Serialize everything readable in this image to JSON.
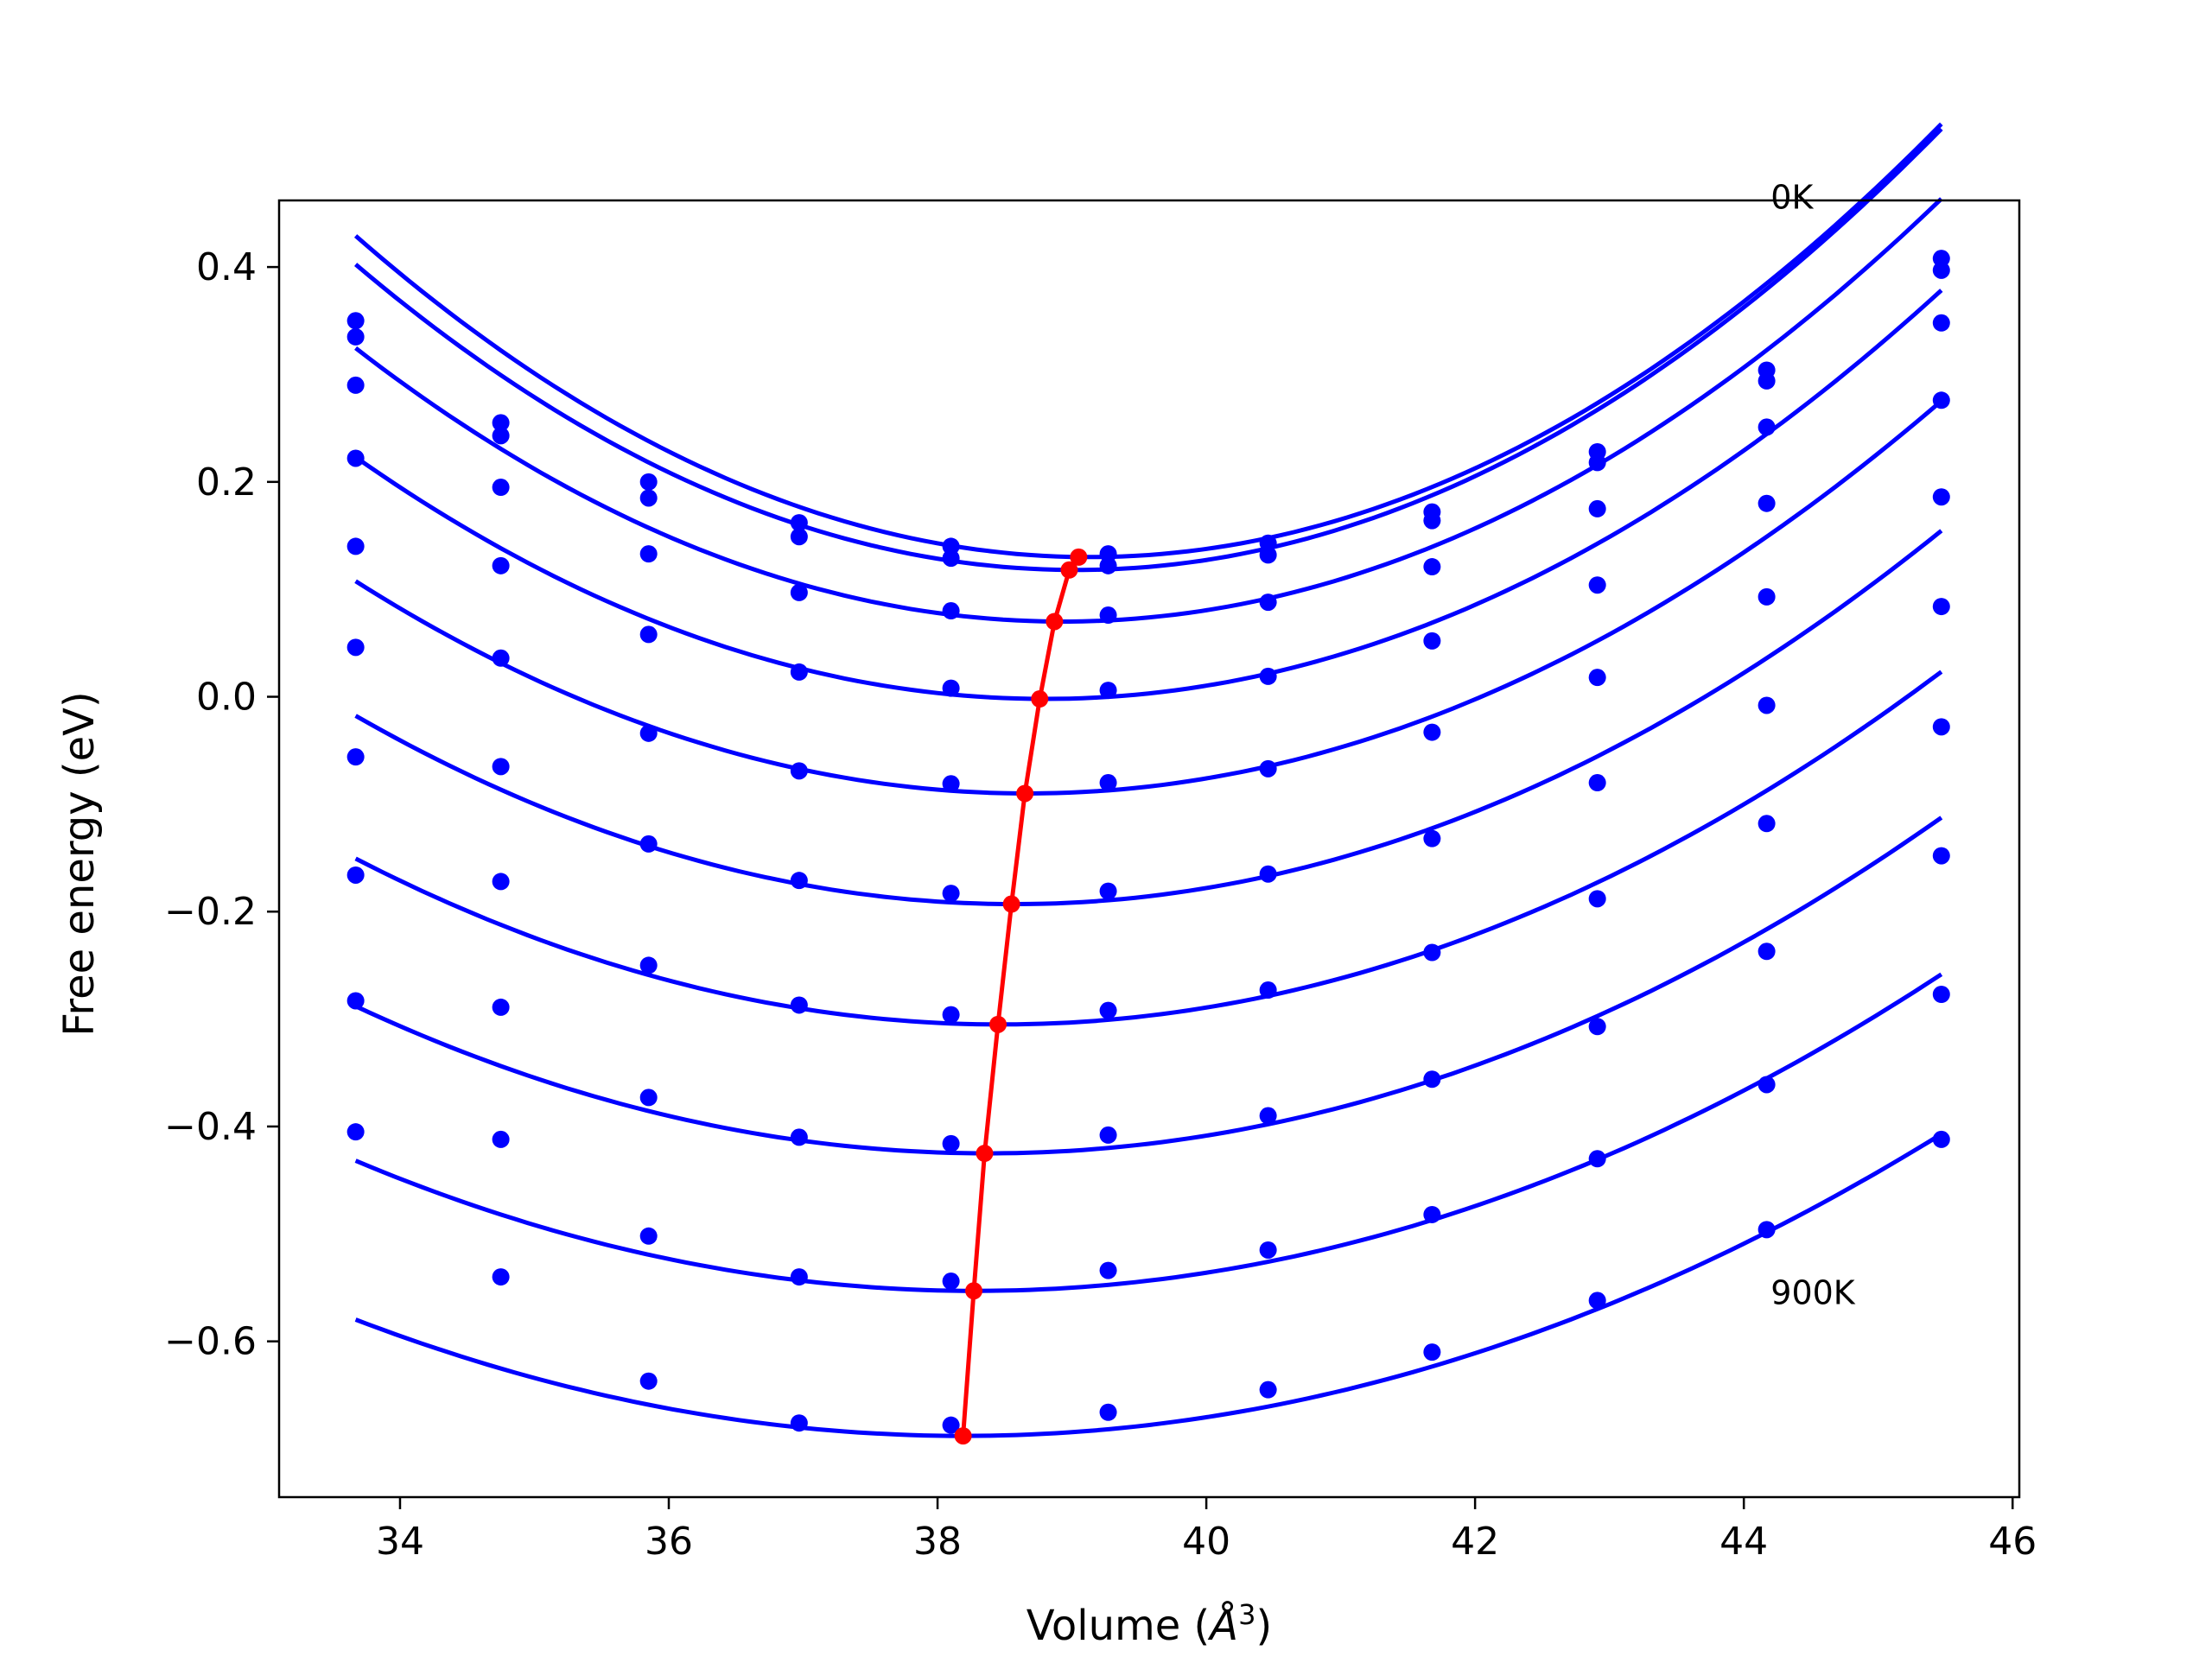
{
  "chart_data": {
    "type": "line",
    "title": "",
    "xlabel": "Volume (",
    "xlabel_unit_base": "Å",
    "xlabel_unit_exp": "3",
    "xlabel_close": ")",
    "ylabel": "Free energy (eV)",
    "xlim": [
      33.1,
      46.05
    ],
    "ylim": [
      -0.745,
      0.462
    ],
    "xticks": [
      34,
      36,
      38,
      40,
      42,
      44,
      46
    ],
    "xtick_labels": [
      "34",
      "36",
      "38",
      "40",
      "42",
      "44",
      "46"
    ],
    "yticks": [
      -0.6,
      -0.4,
      -0.2,
      0.0,
      0.2,
      0.4
    ],
    "ytick_labels": [
      "−0.6",
      "−0.4",
      "−0.2",
      "0.0",
      "0.2",
      "0.4"
    ],
    "grid": false,
    "legend": "none",
    "annotations": [
      {
        "text": "0K",
        "x": 44.2,
        "y": 0.465
      },
      {
        "text": "900K",
        "x": 44.2,
        "y": -0.555
      }
    ],
    "colors": {
      "curves": "#0000ff",
      "minima": "#ff0000"
    },
    "x": [
      33.67,
      34.75,
      35.85,
      36.97,
      38.1,
      39.27,
      40.46,
      41.68,
      42.91,
      44.17,
      45.47
    ],
    "series": [
      {
        "values": [
          0.35,
          0.255,
          0.2,
          0.162,
          0.14,
          0.133,
          0.143,
          0.172,
          0.228,
          0.304,
          0.408
        ],
        "fit": {
          "a": 0.01003,
          "v0": 39.13,
          "e0": 0.13
        }
      },
      {
        "values": [
          0.335,
          0.243,
          0.185,
          0.149,
          0.129,
          0.122,
          0.132,
          0.164,
          0.218,
          0.294,
          0.397
        ],
        "fit": {
          "a": 0.0099,
          "v0": 39.03,
          "e0": 0.118
        }
      },
      {
        "values": [
          0.29,
          0.195,
          0.133,
          0.097,
          0.08,
          0.076,
          0.088,
          0.121,
          0.175,
          0.251,
          0.348
        ],
        "fit": {
          "a": 0.0092,
          "v0": 38.93,
          "e0": 0.07
        }
      },
      {
        "values": [
          0.222,
          0.122,
          0.058,
          0.023,
          0.008,
          0.006,
          0.019,
          0.052,
          0.104,
          0.18,
          0.276
        ],
        "fit": {
          "a": 0.00855,
          "v0": 38.8,
          "e0": -0.002
        }
      },
      {
        "values": [
          0.14,
          0.036,
          -0.034,
          -0.069,
          -0.081,
          -0.08,
          -0.067,
          -0.033,
          0.018,
          0.093,
          0.186
        ],
        "fit": {
          "a": 0.0079,
          "v0": 38.67,
          "e0": -0.09
        }
      },
      {
        "values": [
          0.046,
          -0.065,
          -0.137,
          -0.171,
          -0.183,
          -0.181,
          -0.165,
          -0.132,
          -0.08,
          -0.008,
          0.084
        ],
        "fit": {
          "a": 0.0073,
          "v0": 38.57,
          "e0": -0.193
        }
      },
      {
        "values": [
          -0.056,
          -0.172,
          -0.25,
          -0.287,
          -0.296,
          -0.292,
          -0.273,
          -0.238,
          -0.188,
          -0.118,
          -0.028
        ],
        "fit": {
          "a": 0.0067,
          "v0": 38.47,
          "e0": -0.305
        }
      },
      {
        "values": [
          -0.166,
          -0.289,
          -0.373,
          -0.41,
          -0.416,
          -0.408,
          -0.39,
          -0.356,
          -0.307,
          -0.237,
          -0.148
        ],
        "fit": {
          "a": 0.0062,
          "v0": 38.37,
          "e0": -0.425
        }
      },
      {
        "values": [
          -0.283,
          -0.412,
          -0.502,
          -0.54,
          -0.544,
          -0.534,
          -0.515,
          -0.482,
          -0.43,
          -0.361,
          -0.277
        ],
        "fit": {
          "a": 0.0057,
          "v0": 38.28,
          "e0": -0.553
        }
      },
      {
        "values": [
          -0.405,
          -0.54,
          -0.637,
          -0.676,
          -0.678,
          -0.666,
          -0.645,
          -0.61,
          -0.562,
          -0.496,
          -0.412
        ],
        "fit": {
          "a": 0.0053,
          "v0": 38.19,
          "e0": -0.688
        }
      }
    ],
    "minima": {
      "x": [
        39.05,
        38.98,
        38.87,
        38.76,
        38.65,
        38.55,
        38.45,
        38.35,
        38.27,
        38.19
      ],
      "y": [
        0.13,
        0.118,
        0.07,
        -0.002,
        -0.09,
        -0.193,
        -0.305,
        -0.425,
        -0.553,
        -0.688
      ]
    }
  }
}
